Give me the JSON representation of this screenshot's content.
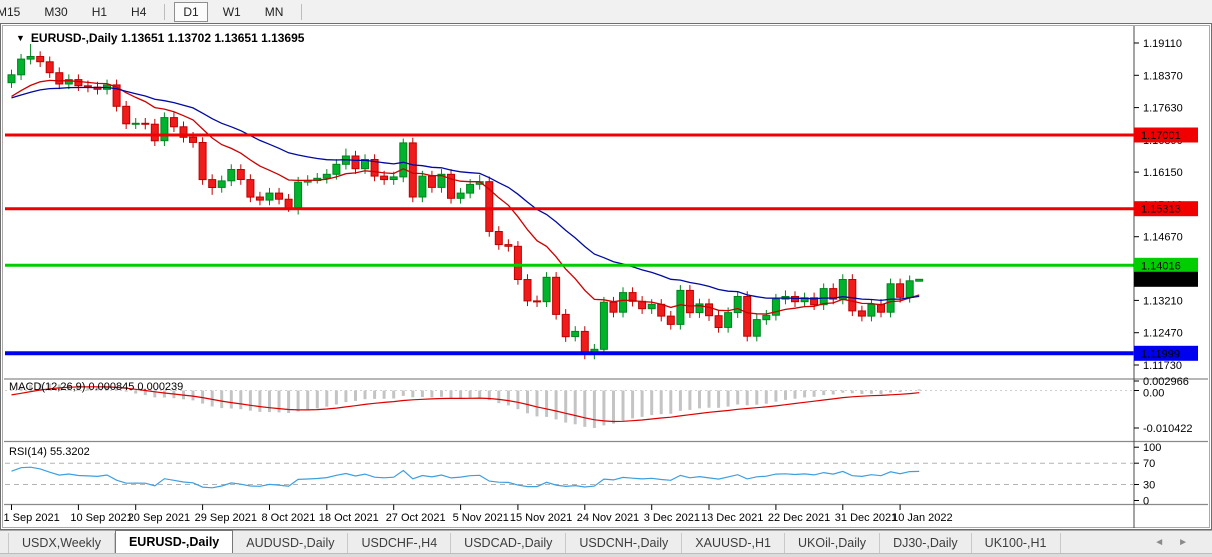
{
  "toolbar": {
    "buttons": [
      "M15",
      "M30",
      "H1",
      "H4",
      "D1",
      "W1",
      "MN"
    ],
    "active": "D1"
  },
  "chart": {
    "title": "EURUSD-,Daily  1.13651 1.13702 1.13651 1.13695",
    "symbol": "EURUSD-,Daily",
    "collapse_arrow_icon": "▼"
  },
  "colors": {
    "bull": "#00b32c",
    "bull_border": "#00831f",
    "bear": "#f01c1c",
    "bear_border": "#bf0000",
    "ma_fast": "#cc0000",
    "ma_slow": "#000a9e",
    "level_red": "#f00000",
    "level_green": "#00ce00",
    "level_blue": "#0000f0",
    "current_badge": "#000000",
    "macd_bar": "#c4c4c4",
    "macd_signal": "#dd0000",
    "rsi_line": "#3d9fe0"
  },
  "chart_data": {
    "type": "candlestick",
    "symbol": "EURUSD-,Daily",
    "candles_format": "[open, high, low, close]",
    "candles": [
      [
        1.182,
        1.185,
        1.1808,
        1.1838
      ],
      [
        1.1838,
        1.1886,
        1.1826,
        1.1874
      ],
      [
        1.1874,
        1.1909,
        1.1862,
        1.188
      ],
      [
        1.188,
        1.1892,
        1.1856,
        1.1868
      ],
      [
        1.1868,
        1.188,
        1.1831,
        1.1843
      ],
      [
        1.1843,
        1.1855,
        1.1805,
        1.1817
      ],
      [
        1.1817,
        1.1839,
        1.1805,
        1.1827
      ],
      [
        1.1827,
        1.1839,
        1.1801,
        1.1813
      ],
      [
        1.1813,
        1.1825,
        1.1798,
        1.181
      ],
      [
        1.181,
        1.1822,
        1.1793,
        1.1805
      ],
      [
        1.1805,
        1.1827,
        1.1793,
        1.1815
      ],
      [
        1.1815,
        1.1827,
        1.1754,
        1.1766
      ],
      [
        1.1766,
        1.1778,
        1.1714,
        1.1726
      ],
      [
        1.1726,
        1.1739,
        1.1714,
        1.1727
      ],
      [
        1.1727,
        1.1739,
        1.1713,
        1.1725
      ],
      [
        1.1725,
        1.1737,
        1.1675,
        1.1687
      ],
      [
        1.1687,
        1.1752,
        1.1675,
        1.174
      ],
      [
        1.174,
        1.1752,
        1.1707,
        1.1719
      ],
      [
        1.1719,
        1.1731,
        1.1683,
        1.1695
      ],
      [
        1.1695,
        1.1707,
        1.1671,
        1.1683
      ],
      [
        1.1683,
        1.1695,
        1.1586,
        1.1598
      ],
      [
        1.1598,
        1.161,
        1.1563,
        1.158
      ],
      [
        1.158,
        1.1607,
        1.1568,
        1.1595
      ],
      [
        1.1595,
        1.1633,
        1.1583,
        1.1621
      ],
      [
        1.1621,
        1.1633,
        1.1586,
        1.1598
      ],
      [
        1.1598,
        1.161,
        1.1546,
        1.1558
      ],
      [
        1.1558,
        1.157,
        1.1539,
        1.1551
      ],
      [
        1.1551,
        1.1579,
        1.1539,
        1.1567
      ],
      [
        1.1567,
        1.1579,
        1.1541,
        1.1553
      ],
      [
        1.1553,
        1.1565,
        1.1524,
        1.153
      ],
      [
        1.153,
        1.1604,
        1.1518,
        1.1592
      ],
      [
        1.1592,
        1.1608,
        1.1584,
        1.1596
      ],
      [
        1.1596,
        1.1613,
        1.1589,
        1.1601
      ],
      [
        1.1601,
        1.1622,
        1.1589,
        1.161
      ],
      [
        1.161,
        1.1645,
        1.1598,
        1.1633
      ],
      [
        1.1633,
        1.1669,
        1.1621,
        1.1652
      ],
      [
        1.1652,
        1.1664,
        1.1611,
        1.1623
      ],
      [
        1.1623,
        1.1656,
        1.1611,
        1.1644
      ],
      [
        1.1644,
        1.1656,
        1.1594,
        1.1606
      ],
      [
        1.1606,
        1.1618,
        1.1586,
        1.1598
      ],
      [
        1.1598,
        1.1616,
        1.1586,
        1.1604
      ],
      [
        1.1604,
        1.1692,
        1.1592,
        1.1682
      ],
      [
        1.1682,
        1.1694,
        1.1546,
        1.1558
      ],
      [
        1.1558,
        1.1618,
        1.1546,
        1.1606
      ],
      [
        1.1606,
        1.1618,
        1.1568,
        1.158
      ],
      [
        1.158,
        1.1622,
        1.1568,
        1.161
      ],
      [
        1.161,
        1.1622,
        1.1543,
        1.1555
      ],
      [
        1.1555,
        1.1579,
        1.1543,
        1.1567
      ],
      [
        1.1567,
        1.1599,
        1.1555,
        1.1587
      ],
      [
        1.1587,
        1.1609,
        1.1575,
        1.1593
      ],
      [
        1.1593,
        1.1605,
        1.1467,
        1.1479
      ],
      [
        1.1479,
        1.1491,
        1.1437,
        1.1449
      ],
      [
        1.1449,
        1.1461,
        1.1433,
        1.1445
      ],
      [
        1.1445,
        1.1457,
        1.1357,
        1.1369
      ],
      [
        1.1369,
        1.1381,
        1.1308,
        1.132
      ],
      [
        1.132,
        1.1332,
        1.1306,
        1.1318
      ],
      [
        1.1318,
        1.1386,
        1.1306,
        1.1374
      ],
      [
        1.1374,
        1.1386,
        1.1277,
        1.1289
      ],
      [
        1.1289,
        1.1301,
        1.1226,
        1.1238
      ],
      [
        1.1238,
        1.1262,
        1.1227,
        1.125
      ],
      [
        1.125,
        1.1262,
        1.1186,
        1.1198
      ],
      [
        1.1198,
        1.1221,
        1.1186,
        1.1209
      ],
      [
        1.1209,
        1.1329,
        1.1197,
        1.1317
      ],
      [
        1.1317,
        1.1329,
        1.1282,
        1.1294
      ],
      [
        1.1294,
        1.1351,
        1.1282,
        1.1339
      ],
      [
        1.1339,
        1.1351,
        1.1307,
        1.1319
      ],
      [
        1.1319,
        1.1331,
        1.129,
        1.1302
      ],
      [
        1.1302,
        1.1324,
        1.129,
        1.1312
      ],
      [
        1.1312,
        1.1324,
        1.1273,
        1.1285
      ],
      [
        1.1285,
        1.1297,
        1.1254,
        1.1266
      ],
      [
        1.1266,
        1.1356,
        1.1254,
        1.1344
      ],
      [
        1.1344,
        1.1356,
        1.1281,
        1.1293
      ],
      [
        1.1293,
        1.1325,
        1.1281,
        1.1313
      ],
      [
        1.1313,
        1.1325,
        1.1274,
        1.1286
      ],
      [
        1.1286,
        1.1298,
        1.1247,
        1.1259
      ],
      [
        1.1259,
        1.1305,
        1.1247,
        1.1293
      ],
      [
        1.1293,
        1.1342,
        1.1281,
        1.133
      ],
      [
        1.133,
        1.1342,
        1.1227,
        1.1239
      ],
      [
        1.1239,
        1.1289,
        1.1227,
        1.1277
      ],
      [
        1.1277,
        1.1299,
        1.1265,
        1.1287
      ],
      [
        1.1287,
        1.1336,
        1.1275,
        1.1324
      ],
      [
        1.1324,
        1.1344,
        1.1312,
        1.133
      ],
      [
        1.133,
        1.1342,
        1.1306,
        1.1318
      ],
      [
        1.1318,
        1.1339,
        1.1306,
        1.1327
      ],
      [
        1.1327,
        1.1339,
        1.1299,
        1.1311
      ],
      [
        1.1311,
        1.136,
        1.1299,
        1.1348
      ],
      [
        1.1348,
        1.136,
        1.1312,
        1.1324
      ],
      [
        1.1324,
        1.1381,
        1.1312,
        1.1369
      ],
      [
        1.1369,
        1.1381,
        1.1285,
        1.1297
      ],
      [
        1.1297,
        1.1309,
        1.1273,
        1.1285
      ],
      [
        1.1285,
        1.1324,
        1.1273,
        1.1312
      ],
      [
        1.1312,
        1.1324,
        1.1282,
        1.1294
      ],
      [
        1.1294,
        1.1371,
        1.1282,
        1.1359
      ],
      [
        1.1359,
        1.1371,
        1.1316,
        1.1328
      ],
      [
        1.1328,
        1.1378,
        1.1316,
        1.1366
      ],
      [
        1.13651,
        1.13702,
        1.13651,
        1.13695
      ]
    ],
    "date_ticks": [
      {
        "label": "1 Sep 2021",
        "index": 0
      },
      {
        "label": "10 Sep 2021",
        "index": 7
      },
      {
        "label": "20 Sep 2021",
        "index": 13
      },
      {
        "label": "29 Sep 2021",
        "index": 20
      },
      {
        "label": "8 Oct 2021",
        "index": 27
      },
      {
        "label": "18 Oct 2021",
        "index": 33
      },
      {
        "label": "27 Oct 2021",
        "index": 40
      },
      {
        "label": "5 Nov 2021",
        "index": 47
      },
      {
        "label": "15 Nov 2021",
        "index": 53
      },
      {
        "label": "24 Nov 2021",
        "index": 60
      },
      {
        "label": "3 Dec 2021",
        "index": 67
      },
      {
        "label": "13 Dec 2021",
        "index": 73
      },
      {
        "label": "22 Dec 2021",
        "index": 80
      },
      {
        "label": "31 Dec 2021",
        "index": 87
      },
      {
        "label": "10 Jan 2022",
        "index": 93
      }
    ],
    "price_axis_ticks": [
      "1.19110",
      "1.18370",
      "1.17630",
      "1.16890",
      "1.16150",
      "1.15410",
      "1.14670",
      "1.13930",
      "1.13210",
      "1.12470",
      "1.11730"
    ],
    "price_levels": [
      {
        "label": "1.17001",
        "price": 1.17001,
        "color_key": "level_red"
      },
      {
        "label": "1.15313",
        "price": 1.15313,
        "color_key": "level_red"
      },
      {
        "label": "1.14016",
        "price": 1.14016,
        "color_key": "level_green"
      },
      {
        "label": "1.11999",
        "price": 1.11999,
        "color_key": "level_blue"
      }
    ],
    "current_price": {
      "label": "1.13695",
      "price": 1.13695
    },
    "indicators": {
      "macd": {
        "label": "MACD(12,26,9) 0.000845 0.000239",
        "axis_labels": [
          {
            "text": "0.002966",
            "value": 0.002966
          },
          {
            "text": "0.00",
            "value": 0
          },
          {
            "text": "-0.010422",
            "value": -0.010422
          }
        ]
      },
      "rsi": {
        "label": "RSI(14) 55.3202",
        "axis_labels": [
          {
            "text": "100",
            "value": 100
          },
          {
            "text": "70",
            "value": 70
          },
          {
            "text": "30",
            "value": 30
          },
          {
            "text": "0",
            "value": 0
          }
        ],
        "dashed_levels": [
          70,
          30
        ]
      }
    }
  },
  "tabs": {
    "items": [
      "USDX,Weekly",
      "EURUSD-,Daily",
      "AUDUSD-,Daily",
      "USDCHF-,H4",
      "USDCAD-,Daily",
      "USDCNH-,Daily",
      "XAUUSD-,H1",
      "UKOil-,Daily",
      "DJ30-,Daily",
      "UK100-,H1"
    ],
    "active": "EURUSD-,Daily",
    "left_arrow_icon": "◄",
    "right_arrow_icon": "►"
  }
}
